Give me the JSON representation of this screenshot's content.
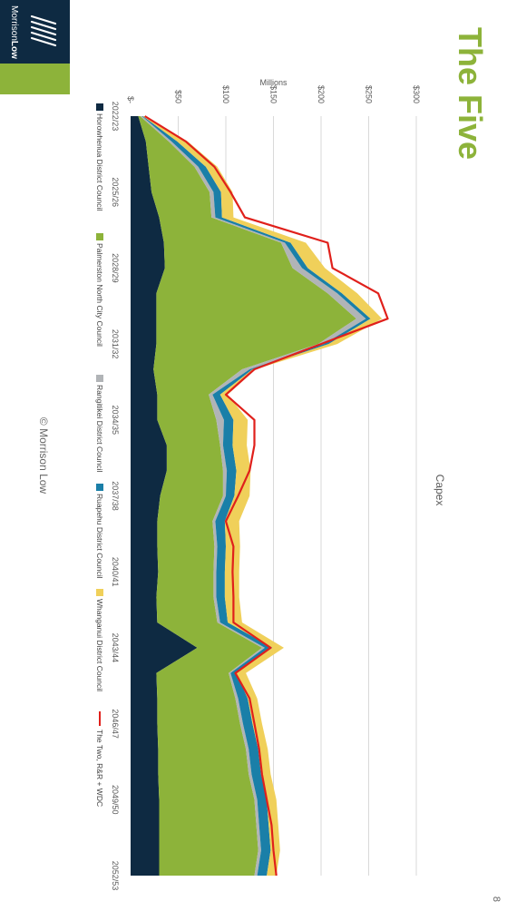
{
  "slide": {
    "title": "The Five",
    "page_number": "8",
    "footer": "© Morrison Low",
    "logo_text_a": "Morrison",
    "logo_text_b": "Low",
    "colors": {
      "title": "#8DB33A",
      "band_dark": "#0E2A42",
      "band_green": "#8DB33A"
    }
  },
  "chart_data": {
    "type": "area",
    "stacked": true,
    "title": "Capex",
    "ylabel": "Millions",
    "ylim": [
      0,
      300
    ],
    "yticks": [
      0,
      50,
      100,
      150,
      200,
      250,
      300
    ],
    "ytick_labels": [
      "$-",
      "$50",
      "$100",
      "$150",
      "$200",
      "$250",
      "$300"
    ],
    "grid": true,
    "legend_position": "bottom",
    "categories": [
      "2022/23",
      "2023/24",
      "2024/25",
      "2025/26",
      "2026/27",
      "2027/28",
      "2028/29",
      "2029/30",
      "2030/31",
      "2031/32",
      "2032/33",
      "2033/34",
      "2034/35",
      "2035/36",
      "2036/37",
      "2037/38",
      "2038/39",
      "2039/40",
      "2040/41",
      "2041/42",
      "2042/43",
      "2043/44",
      "2044/45",
      "2045/46",
      "2046/47",
      "2047/48",
      "2048/49",
      "2049/50",
      "2050/51",
      "2051/52",
      "2052/53"
    ],
    "x_tick_labels": [
      "2022/23",
      "2025/26",
      "2028/29",
      "2031/32",
      "2034/35",
      "2037/38",
      "2040/41",
      "2043/44",
      "2046/47",
      "2049/50",
      "2052/53"
    ],
    "series": [
      {
        "name": "Horowhenua District Council",
        "color": "#0E2A42",
        "values": [
          8,
          16,
          19,
          22,
          30,
          35,
          36,
          27,
          27,
          27,
          24,
          28,
          28,
          38,
          38,
          31,
          28,
          28,
          29,
          27,
          28,
          70,
          27,
          28,
          28,
          29,
          29,
          30,
          30,
          30,
          30
        ]
      },
      {
        "name": "Palmerston North City Council",
        "color": "#8DB33A",
        "values": [
          2,
          24,
          48,
          61,
          55,
          123,
          134,
          180,
          210,
          170,
          93,
          54,
          62,
          56,
          59,
          66,
          58,
          60,
          58,
          60,
          63,
          68,
          76,
          82,
          87,
          92,
          95,
          100,
          102,
          104,
          100
        ]
      },
      {
        "name": "Rangitikei District Council",
        "color": "#B1B4B7",
        "values": [
          2,
          3,
          4,
          4,
          4,
          4,
          10,
          10,
          10,
          6,
          8,
          4,
          8,
          3,
          4,
          3,
          3,
          3,
          3,
          3,
          3,
          3,
          2,
          3,
          3,
          3,
          3,
          3,
          3,
          3,
          3
        ]
      },
      {
        "name": "Ruapehu District Council",
        "color": "#1A7FA8",
        "values": [
          1,
          6,
          8,
          8,
          7,
          6,
          6,
          5,
          5,
          5,
          3,
          8,
          10,
          10,
          10,
          9,
          10,
          9,
          9,
          9,
          8,
          8,
          6,
          10,
          10,
          10,
          10,
          10,
          10,
          10,
          10
        ]
      },
      {
        "name": "Whanganui District Council",
        "color": "#F0D05A",
        "values": [
          2,
          11,
          12,
          12,
          12,
          16,
          18,
          16,
          12,
          9,
          3,
          8,
          15,
          15,
          15,
          16,
          15,
          15,
          15,
          15,
          15,
          12,
          10,
          10,
          10,
          10,
          10,
          10,
          10,
          10,
          10
        ]
      }
    ],
    "line": {
      "name": "The Two, R&R + WDC",
      "color": "#E0201B",
      "values": [
        15,
        58,
        88,
        105,
        120,
        207,
        212,
        260,
        270,
        200,
        130,
        100,
        130,
        130,
        125,
        113,
        100,
        108,
        107,
        108,
        108,
        147,
        110,
        125,
        130,
        135,
        138,
        143,
        148,
        150,
        153
      ]
    }
  }
}
